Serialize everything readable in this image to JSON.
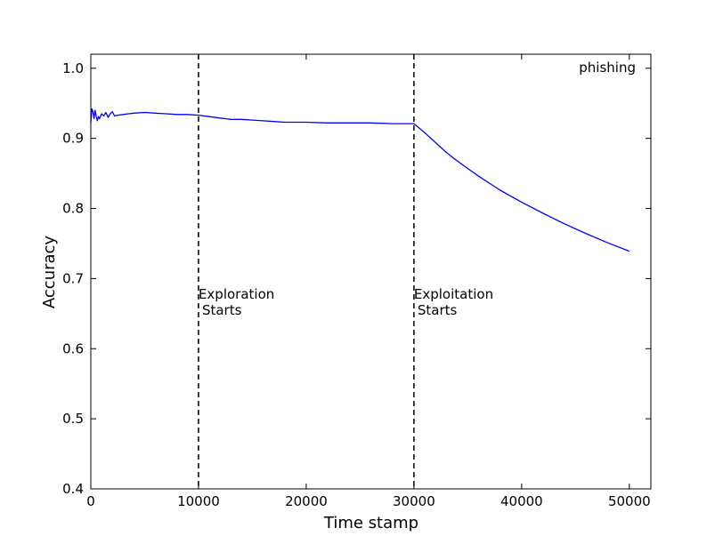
{
  "chart_data": {
    "type": "line",
    "title": "",
    "xlabel": "Time stamp",
    "ylabel": "Accuracy",
    "xlim": [
      0,
      52000
    ],
    "ylim": [
      0.4,
      1.02
    ],
    "x_ticks": [
      0,
      10000,
      20000,
      30000,
      40000,
      50000
    ],
    "x_tick_labels": [
      "0",
      "10000",
      "20000",
      "30000",
      "40000",
      "50000"
    ],
    "y_ticks": [
      0.4,
      0.5,
      0.6,
      0.7,
      0.8,
      0.9,
      1.0
    ],
    "y_tick_labels": [
      "0.4",
      "0.5",
      "0.6",
      "0.7",
      "0.8",
      "0.9",
      "1.0"
    ],
    "grid": false,
    "legend": {
      "placement": "top-right",
      "entries": [
        "phishing"
      ]
    },
    "series": [
      {
        "name": "phishing",
        "color": "#0000ff",
        "x": [
          0,
          100,
          200,
          300,
          400,
          500,
          600,
          700,
          800,
          1000,
          1200,
          1400,
          1600,
          1800,
          2000,
          2200,
          2500,
          3000,
          3500,
          4000,
          5000,
          6000,
          7000,
          8000,
          9000,
          10000,
          11000,
          12000,
          13000,
          14000,
          15000,
          16000,
          17000,
          18000,
          20000,
          22000,
          24000,
          26000,
          28000,
          30000,
          31000,
          32000,
          33000,
          34000,
          35000,
          36000,
          38000,
          40000,
          42000,
          44000,
          46000,
          48000,
          50000
        ],
        "y": [
          0.922,
          0.942,
          0.938,
          0.928,
          0.94,
          0.932,
          0.925,
          0.931,
          0.928,
          0.935,
          0.932,
          0.937,
          0.93,
          0.935,
          0.938,
          0.932,
          0.933,
          0.934,
          0.935,
          0.936,
          0.937,
          0.936,
          0.935,
          0.934,
          0.934,
          0.933,
          0.931,
          0.929,
          0.927,
          0.927,
          0.926,
          0.925,
          0.924,
          0.923,
          0.923,
          0.922,
          0.922,
          0.922,
          0.921,
          0.921,
          0.908,
          0.894,
          0.88,
          0.868,
          0.857,
          0.846,
          0.826,
          0.809,
          0.793,
          0.778,
          0.764,
          0.751,
          0.739
        ]
      }
    ],
    "vlines": [
      {
        "x": 10000,
        "style": "dashed",
        "color": "#000000",
        "label_line1": "Exploration",
        "label_line2": " Starts"
      },
      {
        "x": 30000,
        "style": "dashed",
        "color": "#000000",
        "label_line1": "Exploitation",
        "label_line2": " Starts"
      }
    ]
  }
}
